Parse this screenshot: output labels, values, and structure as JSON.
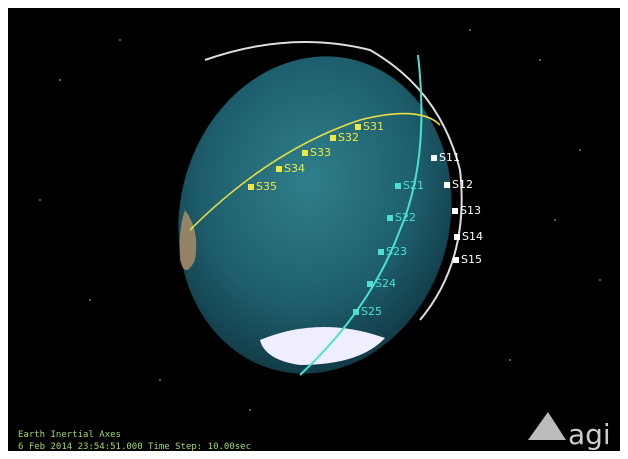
{
  "satellites": {
    "white": [
      "S11",
      "S12",
      "S13",
      "S14",
      "S15"
    ],
    "cyan": [
      "S21",
      "S22",
      "S23",
      "S24",
      "S25"
    ],
    "yellow": [
      "S31",
      "S32",
      "S33",
      "S34",
      "S35"
    ]
  },
  "footer": {
    "axes": "Earth Inertial Axes",
    "time": "6 Feb 2014 23:54:51.000    Time Step: 10.00sec"
  },
  "logo": "agi"
}
